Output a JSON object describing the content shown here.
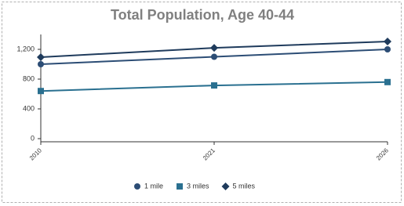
{
  "chart_data": {
    "type": "line",
    "title": "Total Population, Age 40-44",
    "categories": [
      "2010",
      "2021",
      "2026"
    ],
    "series": [
      {
        "name": "1 mile",
        "color": "#2c4d75",
        "marker": "circle",
        "values": [
          1000,
          1100,
          1200
        ]
      },
      {
        "name": "3 miles",
        "color": "#2a7090",
        "marker": "square",
        "values": [
          640,
          715,
          760
        ]
      },
      {
        "name": "5 miles",
        "color": "#1f3b5c",
        "marker": "diamond",
        "values": [
          1095,
          1220,
          1305
        ]
      }
    ],
    "ylim": [
      0,
      1400
    ],
    "yticks": [
      0,
      400,
      800,
      {
        "value": 1200,
        "label": "1,200"
      }
    ],
    "grid": false,
    "legend": "bottom"
  }
}
